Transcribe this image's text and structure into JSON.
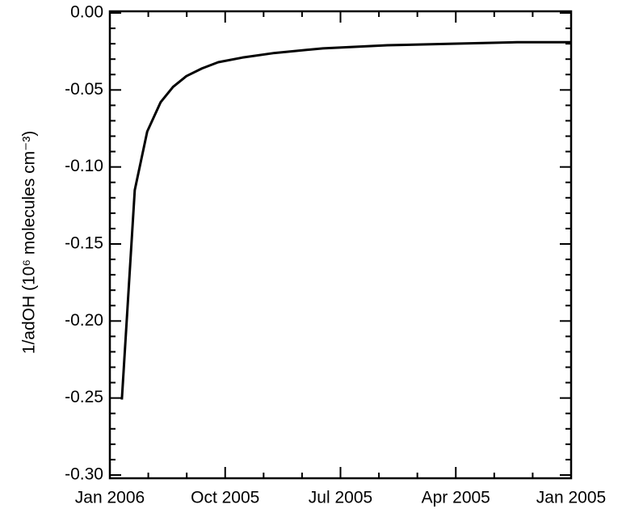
{
  "chart_data": {
    "type": "line",
    "y_label": "1/adOH (10⁶ molecules cm⁻³)",
    "x": [
      2005.974,
      2005.946,
      2005.919,
      2005.89,
      2005.863,
      2005.834,
      2005.8,
      2005.765,
      2005.713,
      2005.643,
      2005.538,
      2005.398,
      2005.257,
      2005.117,
      2005.0
    ],
    "values": [
      -0.251,
      -0.115,
      -0.077,
      -0.058,
      -0.048,
      -0.041,
      -0.036,
      -0.032,
      -0.029,
      -0.026,
      -0.023,
      -0.021,
      -0.02,
      -0.019,
      -0.019
    ],
    "color": "#000000",
    "xlim": [
      2006,
      2005
    ],
    "xticks": [
      {
        "value": 2006,
        "label": "Jan 2006"
      },
      {
        "value": 2005.75,
        "label": "Oct 2005"
      },
      {
        "value": 2005.5,
        "label": "Jul 2005"
      },
      {
        "value": 2005.25,
        "label": "Apr 2005"
      },
      {
        "value": 2005,
        "label": "Jan 2005"
      }
    ],
    "ylim": [
      -0.3,
      0.0
    ],
    "yticks": [
      {
        "value": -0.3,
        "label": "-0.30"
      },
      {
        "value": -0.25,
        "label": "-0.25"
      },
      {
        "value": -0.2,
        "label": "-0.20"
      },
      {
        "value": -0.15,
        "label": "-0.15"
      },
      {
        "value": -0.1,
        "label": "-0.10"
      },
      {
        "value": -0.05,
        "label": "-0.05"
      },
      {
        "value": 0,
        "label": "0.00"
      }
    ],
    "grid": false
  }
}
